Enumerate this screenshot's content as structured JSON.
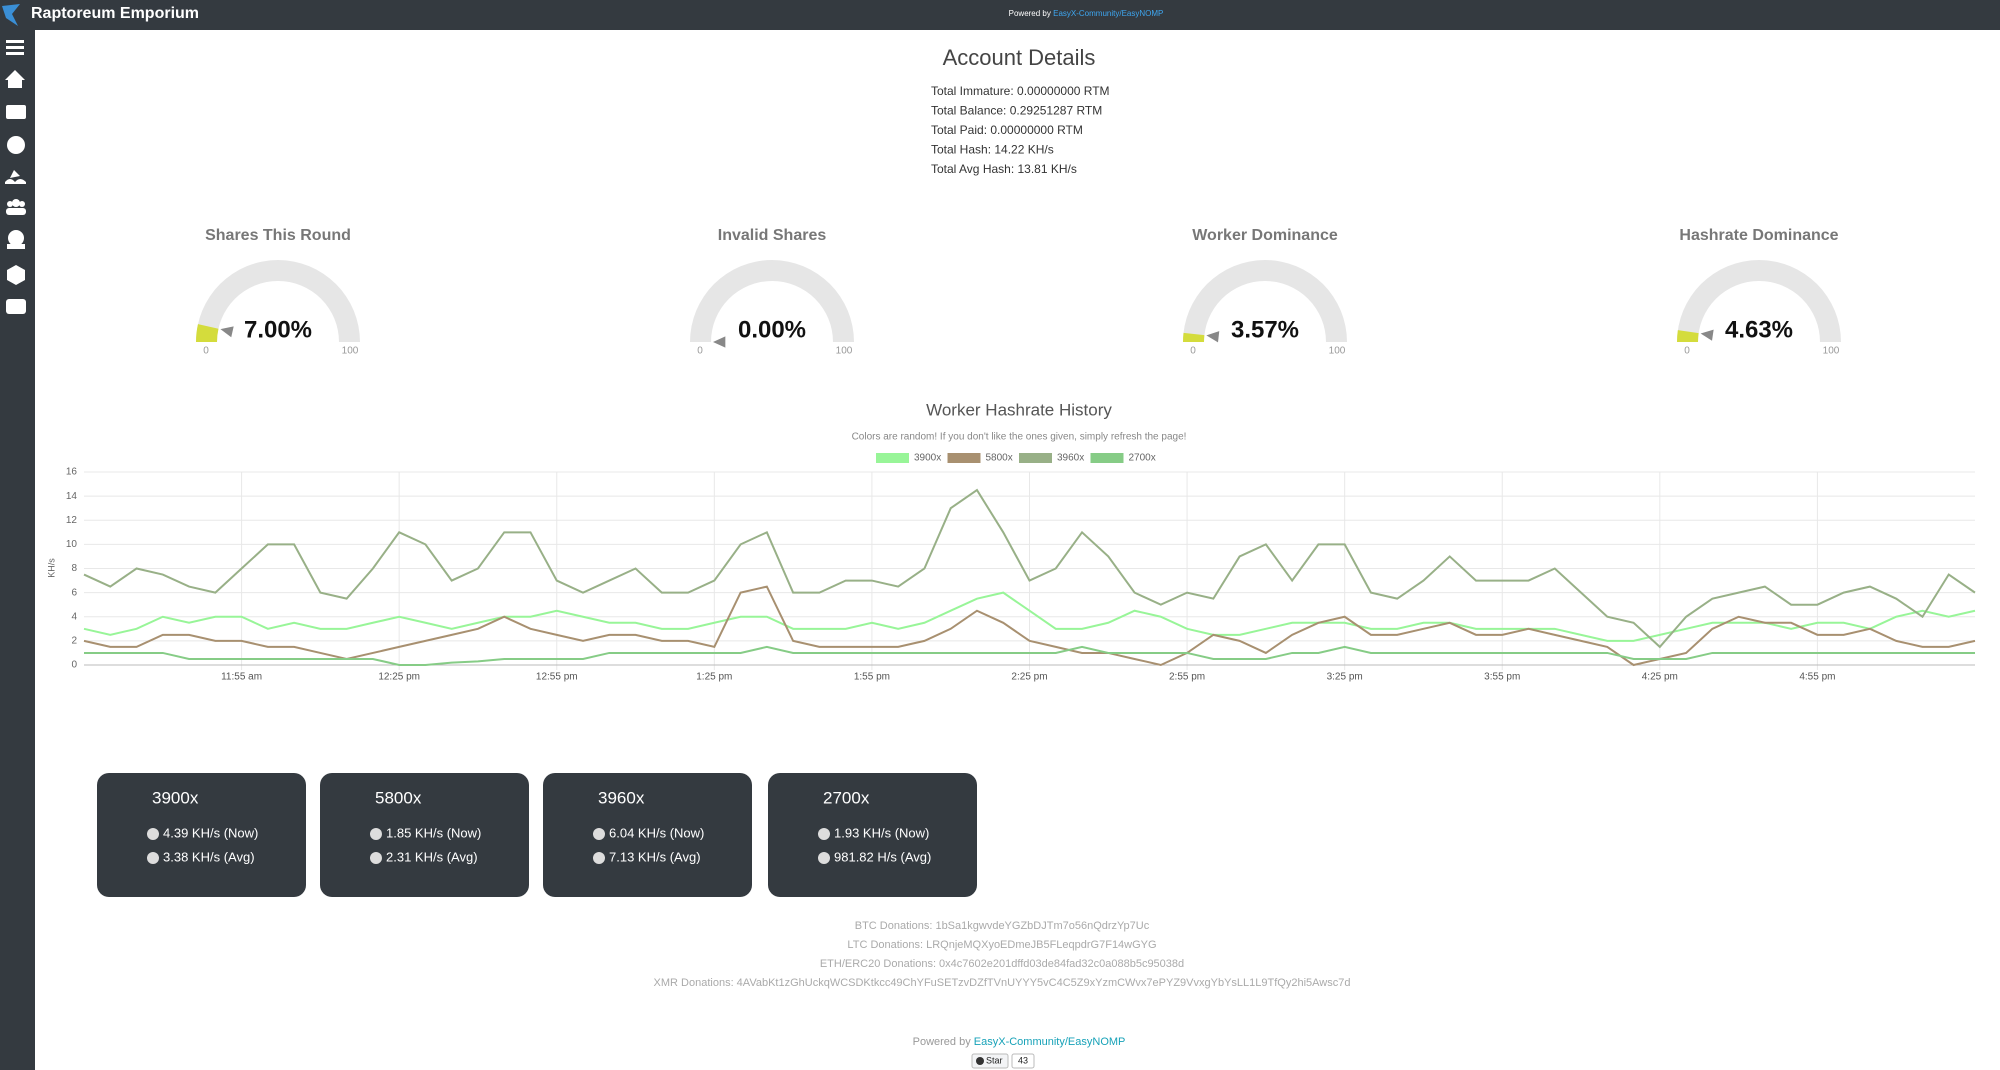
{
  "header": {
    "title": "Raptoreum Emporium",
    "powered_by": "Powered by",
    "powered_link": "EasyX-Community/EasyNOMP"
  },
  "account": {
    "title": "Account Details",
    "lines": [
      "Total Immature: 0.00000000 RTM",
      "Total Balance: 0.29251287 RTM",
      "Total Paid: 0.00000000 RTM",
      "Total Hash: 14.22 KH/s",
      "Total Avg Hash: 13.81 KH/s"
    ]
  },
  "gauges": [
    {
      "title": "Shares This Round",
      "value": 7,
      "value_label": "7.00%",
      "min": 0,
      "max": 100
    },
    {
      "title": "Invalid Shares",
      "value": 0,
      "value_label": "0.00%",
      "min": 0,
      "max": 100
    },
    {
      "title": "Worker Dominance",
      "value": 3.57,
      "value_label": "3.57%",
      "min": 0,
      "max": 100
    },
    {
      "title": "Hashrate Dominance",
      "value": 4.63,
      "value_label": "4.63%",
      "min": 0,
      "max": 100
    }
  ],
  "chart_data": {
    "type": "line",
    "title": "Worker Hashrate History",
    "subtitle": "Colors are random! If you don't like the ones given, simply refresh the page!",
    "y_label": "KH/s",
    "categories": [
      null,
      null,
      null,
      null,
      null,
      null,
      "11:55 am",
      null,
      null,
      null,
      null,
      null,
      "12:25 pm",
      null,
      null,
      null,
      null,
      null,
      "12:55 pm",
      null,
      null,
      null,
      null,
      null,
      "1:25 pm",
      null,
      null,
      null,
      null,
      null,
      "1:55 pm",
      null,
      null,
      null,
      null,
      null,
      "2:25 pm",
      null,
      null,
      null,
      null,
      null,
      "2:55 pm",
      null,
      null,
      null,
      null,
      null,
      "3:25 pm",
      null,
      null,
      null,
      null,
      null,
      "3:55 pm",
      null,
      null,
      null,
      null,
      null,
      "4:25 pm",
      null,
      null,
      null,
      null,
      null,
      "4:55 pm",
      null,
      null,
      null,
      null,
      null,
      null
    ],
    "series": [
      {
        "name": "3900x",
        "color": "#98f598",
        "values": [
          3,
          2.5,
          3,
          4,
          3.5,
          4,
          4,
          3,
          3.5,
          3,
          3,
          3.5,
          4,
          3.5,
          3,
          3.5,
          4,
          4,
          4.5,
          4,
          3.5,
          3.5,
          3,
          3,
          3.5,
          4,
          4,
          3,
          3,
          3,
          3.5,
          3,
          3.5,
          4.5,
          5.5,
          6,
          4.5,
          3,
          3,
          3.5,
          4.5,
          4,
          3,
          2.5,
          2.5,
          3,
          3.5,
          3.5,
          3.5,
          3,
          3,
          3.5,
          3.5,
          3,
          3,
          3,
          3,
          2.5,
          2,
          2,
          2.5,
          3,
          3.5,
          3.5,
          3.5,
          3,
          3.5,
          3.5,
          3,
          4,
          4.5,
          4,
          4.5
        ]
      },
      {
        "name": "5800x",
        "color": "#a89070",
        "values": [
          2,
          1.5,
          1.5,
          2.5,
          2.5,
          2,
          2,
          1.5,
          1.5,
          1,
          0.5,
          1,
          1.5,
          2,
          2.5,
          3,
          4,
          3,
          2.5,
          2,
          2.5,
          2.5,
          2,
          2,
          1.5,
          6,
          6.5,
          2,
          1.5,
          1.5,
          1.5,
          1.5,
          2,
          3,
          4.5,
          3.5,
          2,
          1.5,
          1,
          1,
          0.5,
          0,
          1,
          2.5,
          2,
          1,
          2.5,
          3.5,
          4,
          2.5,
          2.5,
          3,
          3.5,
          2.5,
          2.5,
          3,
          2.5,
          2,
          1.5,
          0,
          0.5,
          1,
          3,
          4,
          3.5,
          3.5,
          2.5,
          2.5,
          3,
          2,
          1.5,
          1.5,
          2
        ]
      },
      {
        "name": "3960x",
        "color": "#98b087",
        "values": [
          7.5,
          6.5,
          8,
          7.5,
          6.5,
          6,
          8,
          10,
          10,
          6,
          5.5,
          8,
          11,
          10,
          7,
          8,
          11,
          11,
          7,
          6,
          7,
          8,
          6,
          6,
          7,
          10,
          11,
          6,
          6,
          7,
          7,
          6.5,
          8,
          13,
          14.5,
          11,
          7,
          8,
          11,
          9,
          6,
          5,
          6,
          5.5,
          9,
          10,
          7,
          10,
          10,
          6,
          5.5,
          7,
          9,
          7,
          7,
          7,
          8,
          6,
          4,
          3.5,
          1.5,
          4,
          5.5,
          6,
          6.5,
          5,
          5,
          6,
          6.5,
          5.5,
          4,
          7.5,
          6
        ]
      },
      {
        "name": "2700x",
        "color": "#86cc86",
        "values": [
          1,
          1,
          1,
          1,
          0.5,
          0.5,
          0.5,
          0.5,
          0.5,
          0.5,
          0.5,
          0.5,
          0,
          0,
          0.2,
          0.3,
          0.5,
          0.5,
          0.5,
          0.5,
          1,
          1,
          1,
          1,
          1,
          1,
          1.5,
          1,
          1,
          1,
          1,
          1,
          1,
          1,
          1,
          1,
          1,
          1,
          1.5,
          1,
          1,
          1,
          1,
          0.5,
          0.5,
          0.5,
          1,
          1,
          1.5,
          1,
          1,
          1,
          1,
          1,
          1,
          1,
          1,
          1,
          1,
          0.5,
          0.5,
          0.5,
          1,
          1,
          1,
          1,
          1,
          1,
          1,
          1,
          1,
          1,
          1
        ]
      }
    ],
    "ylim": [
      0,
      16
    ],
    "yticks": [
      0,
      2,
      4,
      6,
      8,
      10,
      12,
      14,
      16
    ],
    "grid": true,
    "legend": "top"
  },
  "workers": [
    {
      "name": "3900x",
      "now": "4.39 KH/s (Now)",
      "avg": "3.38 KH/s (Avg)"
    },
    {
      "name": "5800x",
      "now": "1.85 KH/s (Now)",
      "avg": "2.31 KH/s (Avg)"
    },
    {
      "name": "3960x",
      "now": "6.04 KH/s (Now)",
      "avg": "7.13 KH/s (Avg)"
    },
    {
      "name": "2700x",
      "now": "1.93 KH/s (Now)",
      "avg": "981.82 H/s (Avg)"
    }
  ],
  "donations": [
    "BTC Donations: 1bSa1kgwvdeYGZbDJTm7o56nQdrzYp7Uc",
    "LTC Donations: LRQnjeMQXyoEDmeJB5FLeqpdrG7F14wGYG",
    "ETH/ERC20 Donations: 0x4c7602e201dffd03de84fad32c0a088b5c95038d",
    "XMR Donations: 4AVabKt1zGhUckqWCSDKtkcc49ChYFuSETzvDZfTVnUYYY5vC4C5Z9xYzmCWvx7ePYZ9VvxgYbYsLL1L9TfQy2hi5Awsc7d"
  ],
  "footer": {
    "powered_by": "Powered by",
    "link": "EasyX-Community/EasyNOMP",
    "star": "Star",
    "star_count": 43
  }
}
